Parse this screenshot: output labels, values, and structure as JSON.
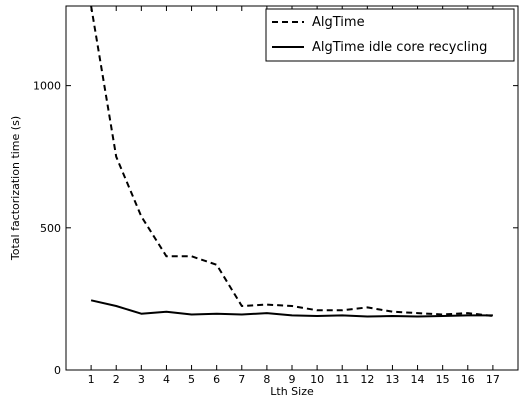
{
  "chart_data": {
    "type": "line",
    "title": "",
    "xlabel": "Lth Size",
    "ylabel": "Total factorization time (s)",
    "x": [
      1,
      2,
      3,
      4,
      5,
      6,
      7,
      8,
      9,
      10,
      11,
      12,
      13,
      14,
      15,
      16,
      17
    ],
    "xlim": [
      0,
      18
    ],
    "ylim": [
      0,
      1280
    ],
    "xticks": [
      "1",
      "2",
      "3",
      "4",
      "5",
      "6",
      "7",
      "8",
      "9",
      "10",
      "11",
      "12",
      "13",
      "14",
      "15",
      "16",
      "17"
    ],
    "yticks": [
      0,
      500,
      1000
    ],
    "yticklabels": [
      "0",
      "500",
      "1000"
    ],
    "grid": false,
    "legend_position": "top-right",
    "series": [
      {
        "name": "AlgTime",
        "style": "dashed",
        "color": "#000000",
        "values": [
          1280,
          750,
          540,
          400,
          400,
          370,
          225,
          230,
          225,
          210,
          210,
          220,
          205,
          200,
          195,
          200,
          190
        ]
      },
      {
        "name": "AlgTime idle core recycling",
        "style": "solid",
        "color": "#000000",
        "values": [
          245,
          225,
          198,
          205,
          195,
          198,
          195,
          200,
          192,
          190,
          192,
          188,
          190,
          188,
          190,
          192,
          192
        ]
      }
    ]
  }
}
